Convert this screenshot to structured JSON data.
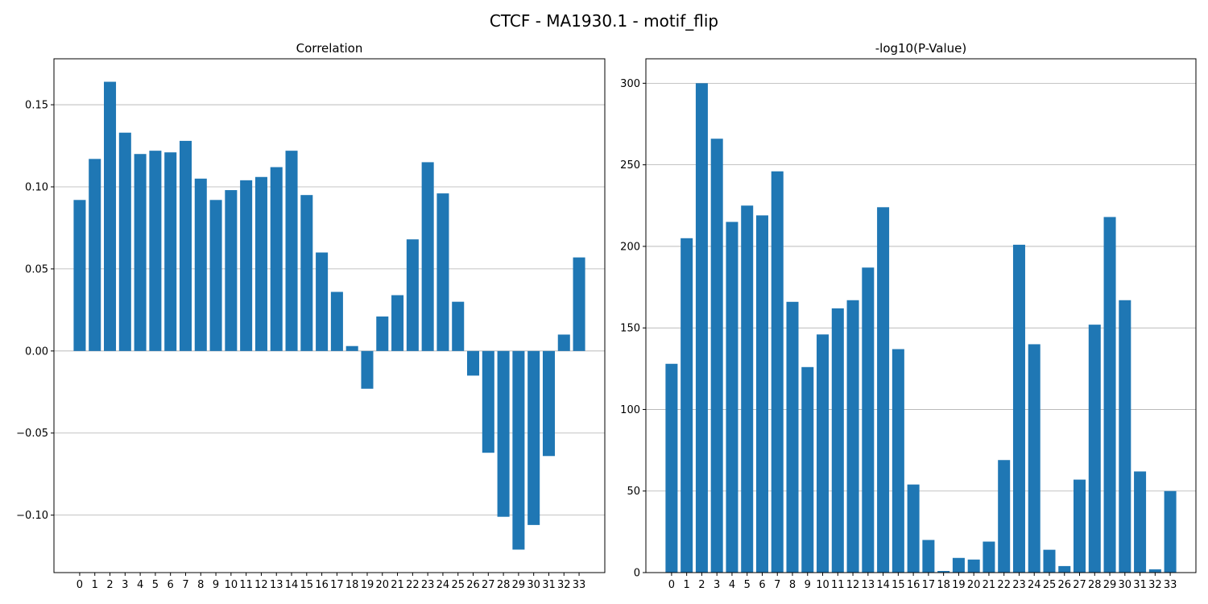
{
  "figure": {
    "suptitle": "CTCF - MA1930.1 - motif_flip"
  },
  "style": {
    "bar_color": "#1f77b4",
    "grid_color": "#b0b0b0",
    "axis_color": "#000000"
  },
  "chart_data": [
    {
      "type": "bar",
      "title": "Correlation",
      "xlabel": "",
      "ylabel": "",
      "categories": [
        "0",
        "1",
        "2",
        "3",
        "4",
        "5",
        "6",
        "7",
        "8",
        "9",
        "10",
        "11",
        "12",
        "13",
        "14",
        "15",
        "16",
        "17",
        "18",
        "19",
        "20",
        "21",
        "22",
        "23",
        "24",
        "25",
        "26",
        "27",
        "28",
        "29",
        "30",
        "31",
        "32",
        "33"
      ],
      "values": [
        0.092,
        0.117,
        0.164,
        0.133,
        0.12,
        0.122,
        0.121,
        0.128,
        0.105,
        0.092,
        0.098,
        0.104,
        0.106,
        0.112,
        0.122,
        0.095,
        0.06,
        0.036,
        0.003,
        -0.023,
        0.021,
        0.034,
        0.068,
        0.115,
        0.096,
        0.03,
        -0.015,
        -0.062,
        -0.101,
        -0.121,
        -0.106,
        -0.064,
        0.01,
        0.057
      ],
      "ylim": [
        -0.135,
        0.178
      ],
      "yticks": [
        -0.1,
        -0.05,
        0.0,
        0.05,
        0.1,
        0.15
      ],
      "ytick_labels": [
        "−0.10",
        "−0.05",
        "0.00",
        "0.05",
        "0.10",
        "0.15"
      ],
      "grid": "y"
    },
    {
      "type": "bar",
      "title": "-log10(P-Value)",
      "xlabel": "",
      "ylabel": "",
      "categories": [
        "0",
        "1",
        "2",
        "3",
        "4",
        "5",
        "6",
        "7",
        "8",
        "9",
        "10",
        "11",
        "12",
        "13",
        "14",
        "15",
        "16",
        "17",
        "18",
        "19",
        "20",
        "21",
        "22",
        "23",
        "24",
        "25",
        "26",
        "27",
        "28",
        "29",
        "30",
        "31",
        "32",
        "33"
      ],
      "values": [
        128,
        205,
        300,
        266,
        215,
        225,
        219,
        246,
        166,
        126,
        146,
        162,
        167,
        187,
        224,
        137,
        54,
        20,
        1,
        9,
        8,
        19,
        69,
        201,
        140,
        14,
        4,
        57,
        152,
        218,
        167,
        62,
        2,
        50
      ],
      "ylim": [
        0,
        315
      ],
      "yticks": [
        0,
        50,
        100,
        150,
        200,
        250,
        300
      ],
      "ytick_labels": [
        "0",
        "50",
        "100",
        "150",
        "200",
        "250",
        "300"
      ],
      "grid": "y"
    }
  ]
}
